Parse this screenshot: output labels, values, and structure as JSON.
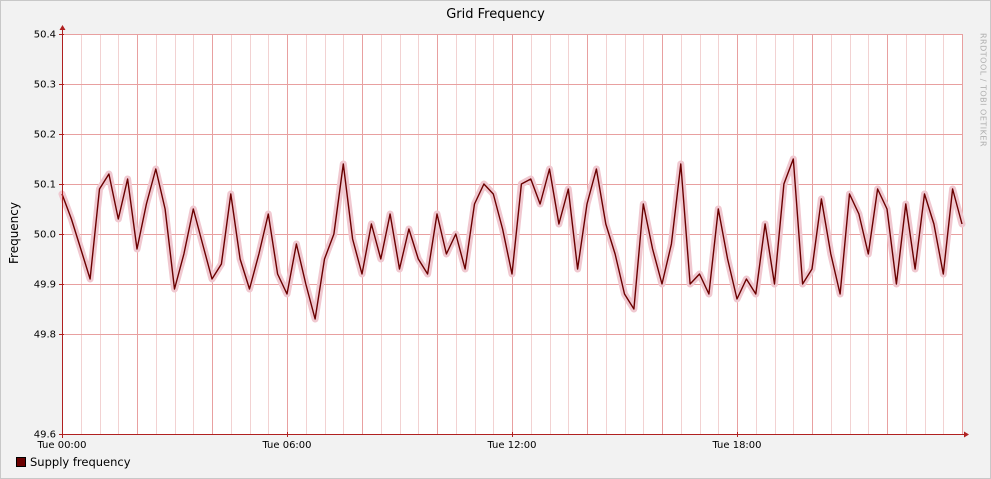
{
  "chart_data": {
    "type": "line",
    "title": "Grid Frequency",
    "xlabel": "",
    "ylabel": "Frequency",
    "watermark": "RRDTOOL / TOBI OETIKER",
    "xlim": [
      0,
      24
    ],
    "ylim": [
      49.6,
      50.4
    ],
    "yticks": [
      "49.6",
      "49.8",
      "49.9",
      "50.0",
      "50.1",
      "50.2",
      "50.3",
      "50.4"
    ],
    "ytick_values": [
      49.6,
      49.8,
      49.9,
      50.0,
      50.1,
      50.2,
      50.3,
      50.4
    ],
    "xticks": [
      "Tue 00:00",
      "Tue 06:00",
      "Tue 12:00",
      "Tue 18:00"
    ],
    "xtick_values": [
      0,
      6,
      12,
      18
    ],
    "grid": true,
    "legend_position": "bottom-left",
    "colors": {
      "line": "#6a0000",
      "band": "#f0c8d0",
      "grid_major": "#e8a0a0",
      "grid_minor": "#f2d2d2",
      "axis": "#b02020",
      "plot_bg": "#ffffff"
    },
    "series": [
      {
        "name": "Supply frequency",
        "x": [
          0,
          0.25,
          0.5,
          0.75,
          1,
          1.25,
          1.5,
          1.75,
          2,
          2.25,
          2.5,
          2.75,
          3,
          3.25,
          3.5,
          3.75,
          4,
          4.25,
          4.5,
          4.75,
          5,
          5.25,
          5.5,
          5.75,
          6,
          6.25,
          6.5,
          6.75,
          7,
          7.25,
          7.5,
          7.75,
          8,
          8.25,
          8.5,
          8.75,
          9,
          9.25,
          9.5,
          9.75,
          10,
          10.25,
          10.5,
          10.75,
          11,
          11.25,
          11.5,
          11.75,
          12,
          12.25,
          12.5,
          12.75,
          13,
          13.25,
          13.5,
          13.75,
          14,
          14.25,
          14.5,
          14.75,
          15,
          15.25,
          15.5,
          15.75,
          16,
          16.25,
          16.5,
          16.75,
          17,
          17.25,
          17.5,
          17.75,
          18,
          18.25,
          18.5,
          18.75,
          19,
          19.25,
          19.5,
          19.75,
          20,
          20.25,
          20.5,
          20.75,
          21,
          21.25,
          21.5,
          21.75,
          22,
          22.25,
          22.5,
          22.75,
          23,
          23.25,
          23.5,
          23.75,
          24
        ],
        "y": [
          50.08,
          50.03,
          49.97,
          49.91,
          50.09,
          50.12,
          50.03,
          50.11,
          49.97,
          50.06,
          50.13,
          50.05,
          49.89,
          49.96,
          50.05,
          49.98,
          49.91,
          49.94,
          50.08,
          49.95,
          49.89,
          49.96,
          50.04,
          49.92,
          49.88,
          49.98,
          49.9,
          49.83,
          49.95,
          50.0,
          50.14,
          49.99,
          49.92,
          50.02,
          49.95,
          50.04,
          49.93,
          50.01,
          49.95,
          49.92,
          50.04,
          49.96,
          50.0,
          49.93,
          50.06,
          50.1,
          50.08,
          50.01,
          49.92,
          50.1,
          50.11,
          50.06,
          50.13,
          50.02,
          50.09,
          49.93,
          50.06,
          50.13,
          50.02,
          49.96,
          49.88,
          49.85,
          50.06,
          49.97,
          49.9,
          49.98,
          50.14,
          49.9,
          49.92,
          49.88,
          50.05,
          49.95,
          49.87,
          49.91,
          49.88,
          50.02,
          49.9,
          50.1,
          50.15,
          49.9,
          49.93,
          50.07,
          49.96,
          49.88,
          50.08,
          50.04,
          49.96,
          50.09,
          50.05,
          49.9,
          50.06,
          49.93,
          50.08,
          50.02,
          49.92,
          50.09,
          50.02
        ]
      }
    ]
  },
  "legend": {
    "label": "Supply frequency"
  }
}
